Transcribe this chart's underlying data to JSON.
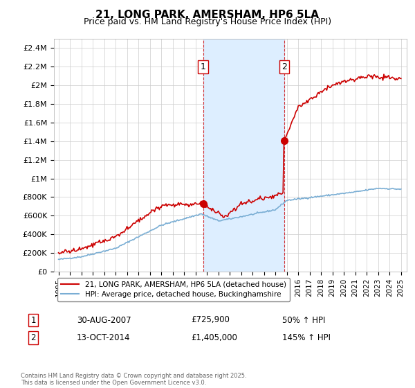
{
  "title": "21, LONG PARK, AMERSHAM, HP6 5LA",
  "subtitle": "Price paid vs. HM Land Registry's House Price Index (HPI)",
  "title_fontsize": 11,
  "subtitle_fontsize": 9,
  "background_color": "#ffffff",
  "plot_bg_color": "#ffffff",
  "grid_color": "#cccccc",
  "ylim": [
    0,
    2500000
  ],
  "yticks": [
    0,
    200000,
    400000,
    600000,
    800000,
    1000000,
    1200000,
    1400000,
    1600000,
    1800000,
    2000000,
    2200000,
    2400000
  ],
  "ytick_labels": [
    "£0",
    "£200K",
    "£400K",
    "£600K",
    "£800K",
    "£1M",
    "£1.2M",
    "£1.4M",
    "£1.6M",
    "£1.8M",
    "£2M",
    "£2.2M",
    "£2.4M"
  ],
  "xlim_start": 1994.6,
  "xlim_end": 2025.5,
  "transaction1_date": 2007.66,
  "transaction1_price": 725900,
  "transaction2_date": 2014.78,
  "transaction2_price": 1405000,
  "red_line_color": "#cc0000",
  "blue_line_color": "#7aaed4",
  "shade_color": "#ddeeff",
  "legend_label_red": "21, LONG PARK, AMERSHAM, HP6 5LA (detached house)",
  "legend_label_blue": "HPI: Average price, detached house, Buckinghamshire",
  "note1_label": "1",
  "note1_date": "30-AUG-2007",
  "note1_price": "£725,900",
  "note1_hpi": "50% ↑ HPI",
  "note2_label": "2",
  "note2_date": "13-OCT-2014",
  "note2_price": "£1,405,000",
  "note2_hpi": "145% ↑ HPI",
  "copyright_text": "Contains HM Land Registry data © Crown copyright and database right 2025.\nThis data is licensed under the Open Government Licence v3.0."
}
